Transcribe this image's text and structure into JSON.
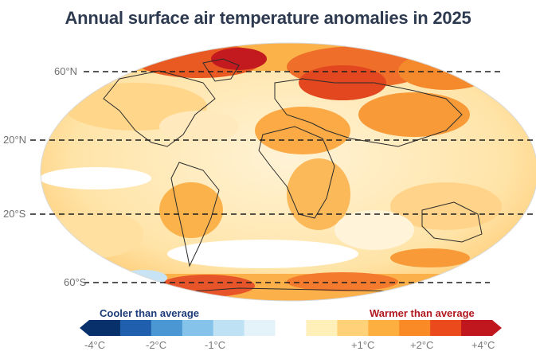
{
  "title": "Annual surface air temperature anomalies in 2025",
  "latitude_labels": [
    "60°N",
    "20°N",
    "20°S",
    "60°S"
  ],
  "legend": {
    "cooler_label": "Cooler than average",
    "warmer_label": "Warmer than average",
    "ticks": [
      "-4°C",
      "-2°C",
      "-1°C",
      "+1°C",
      "+2°C",
      "+4°C"
    ],
    "swatches": [
      "#08306b",
      "#1f5fae",
      "#4a97d4",
      "#86c3ea",
      "#bfe1f4",
      "#e4f2fa",
      "#ffffff",
      "#ffefb8",
      "#ffd27a",
      "#fdb040",
      "#f98a26",
      "#ea4a1c",
      "#c0161e"
    ]
  }
}
